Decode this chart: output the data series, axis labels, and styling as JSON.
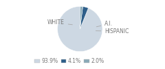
{
  "labels": [
    "WHITE",
    "A.I.",
    "HISPANIC"
  ],
  "sizes": [
    93.9,
    4.1,
    2.0
  ],
  "colors": [
    "#cdd8e3",
    "#2e5f8a",
    "#8aaab8"
  ],
  "legend_labels": [
    "93.9%",
    "4.1%",
    "2.0%"
  ],
  "legend_colors": [
    "#cdd8e3",
    "#2e5f8a",
    "#8aaab8"
  ],
  "startangle": 90,
  "bg_color": "#ffffff",
  "text_color": "#777777",
  "line_color": "#aaaaaa",
  "font_size": 5.5
}
